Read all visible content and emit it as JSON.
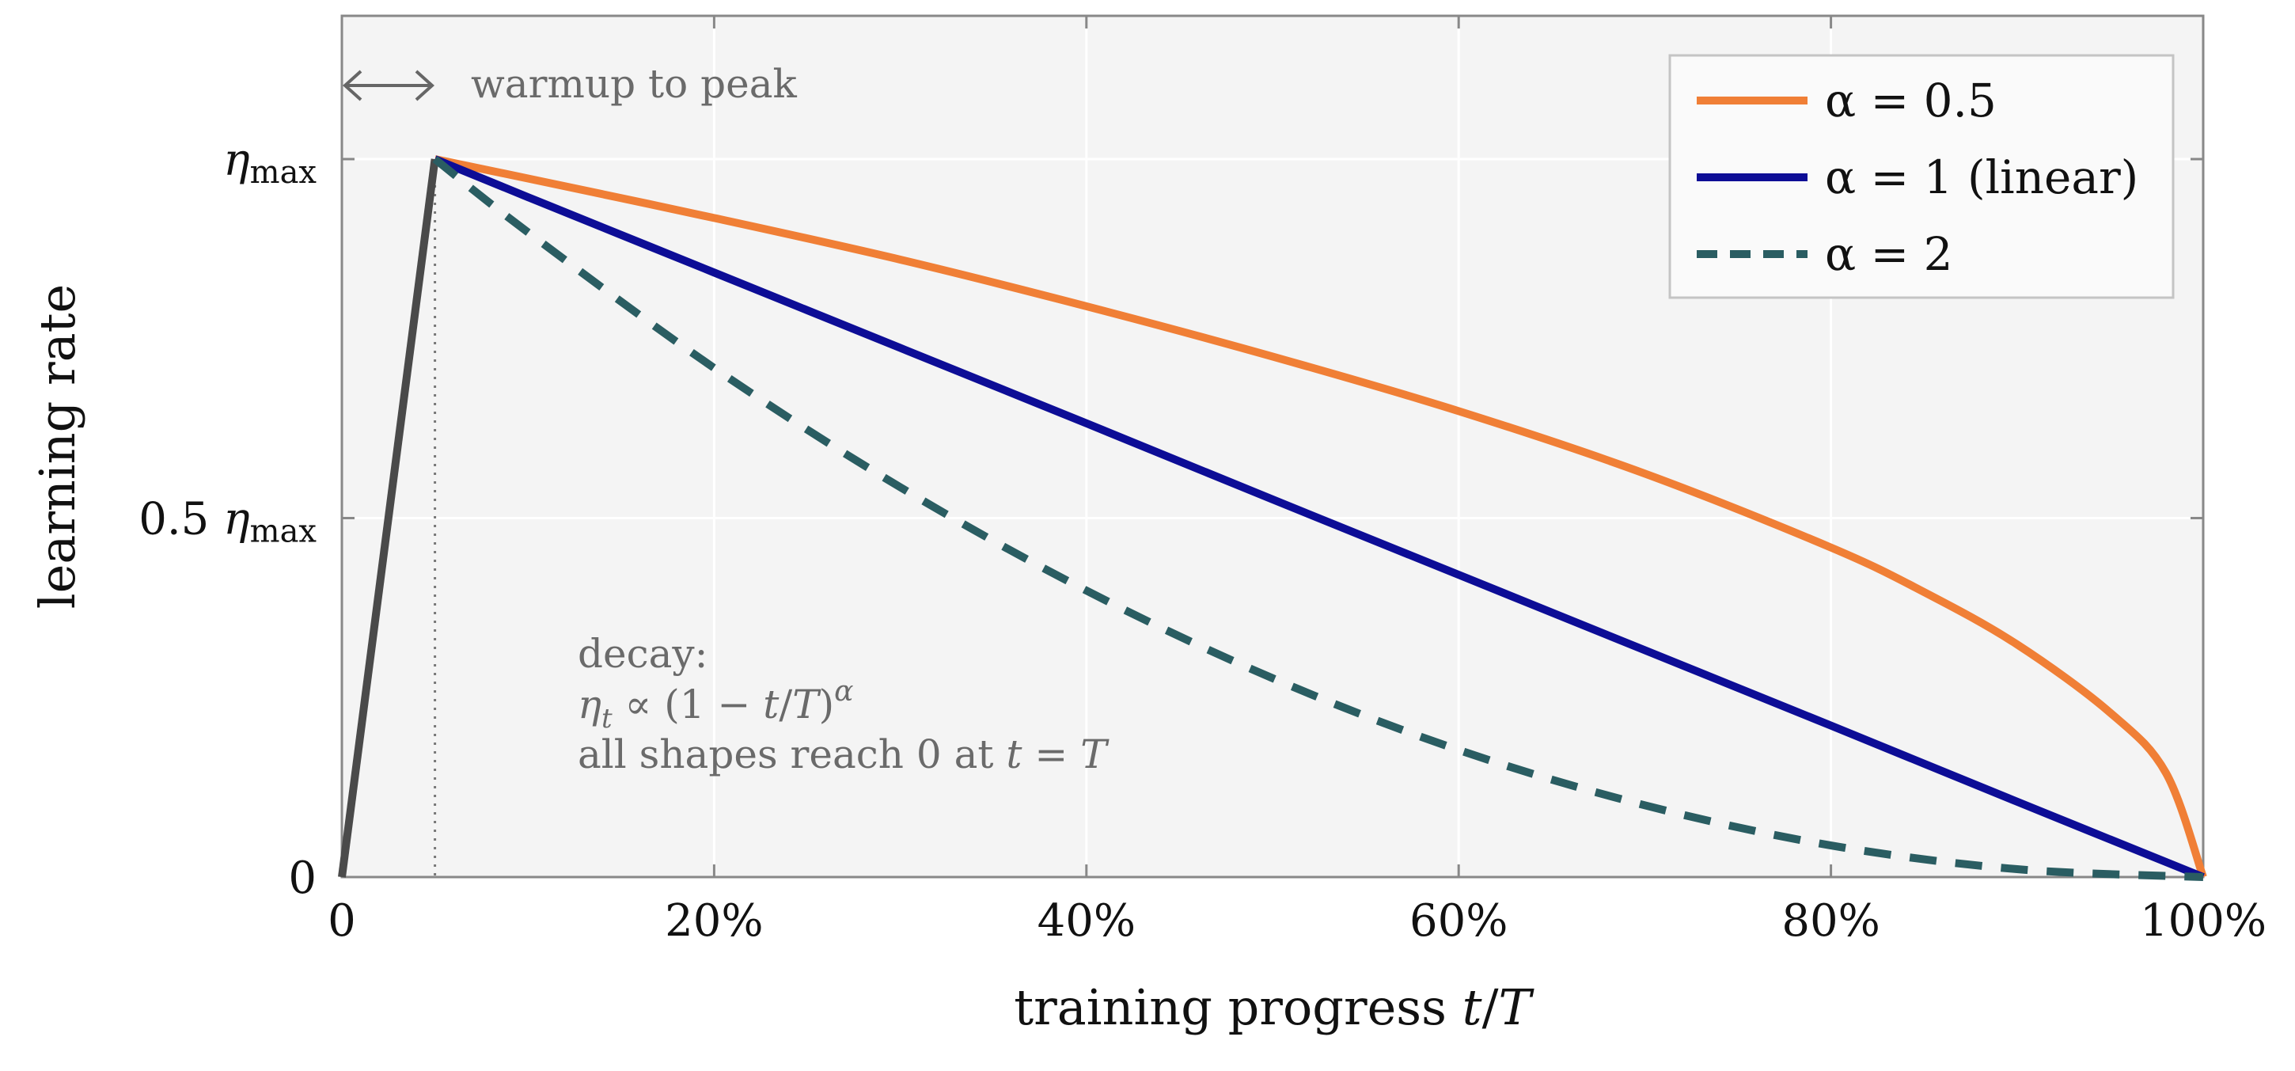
{
  "chart_data": {
    "type": "line",
    "xlabel": "training progress t/T",
    "ylabel": "learning rate",
    "xlim": [
      0,
      1
    ],
    "ylim": [
      0,
      1.2
    ],
    "grid": true,
    "legend_position": "top-right",
    "x_ticks": [
      {
        "value": 0,
        "label": "0"
      },
      {
        "value": 0.2,
        "label": "20%"
      },
      {
        "value": 0.4,
        "label": "40%"
      },
      {
        "value": 0.6,
        "label": "60%"
      },
      {
        "value": 0.8,
        "label": "80%"
      },
      {
        "value": 1.0,
        "label": "100%"
      }
    ],
    "y_ticks": [
      {
        "value": 0,
        "label": "0"
      },
      {
        "value": 0.5,
        "label": "0.5 ηmax"
      },
      {
        "value": 1.0,
        "label": "ηmax"
      }
    ],
    "warmup": {
      "x": [
        0,
        0.05
      ],
      "y": [
        0,
        1.0
      ],
      "color": "#4a4a4a"
    },
    "series": [
      {
        "name": "α = 0.5",
        "color": "#f07f36",
        "dash": "solid",
        "x": [
          0.05,
          0.1,
          0.2,
          0.3,
          0.4,
          0.5,
          0.6,
          0.7,
          0.8,
          0.85,
          0.9,
          0.95,
          0.98,
          1.0
        ],
        "y": [
          1.0,
          0.973,
          0.918,
          0.86,
          0.795,
          0.725,
          0.649,
          0.562,
          0.459,
          0.397,
          0.324,
          0.229,
          0.145,
          0.0
        ]
      },
      {
        "name": "α = 1 (linear)",
        "color": "#0d0d96",
        "dash": "solid",
        "x": [
          0.05,
          0.1,
          0.2,
          0.3,
          0.4,
          0.5,
          0.6,
          0.7,
          0.8,
          0.9,
          1.0
        ],
        "y": [
          1.0,
          0.947,
          0.842,
          0.737,
          0.632,
          0.526,
          0.421,
          0.316,
          0.211,
          0.105,
          0.0
        ]
      },
      {
        "name": "α = 2",
        "color": "#2a5d62",
        "dash": "dashed",
        "x": [
          0.05,
          0.1,
          0.2,
          0.3,
          0.4,
          0.5,
          0.6,
          0.7,
          0.8,
          0.9,
          1.0
        ],
        "y": [
          1.0,
          0.898,
          0.709,
          0.543,
          0.399,
          0.277,
          0.177,
          0.1,
          0.044,
          0.011,
          0.0
        ]
      }
    ],
    "annotations": {
      "warmup": "warmup to peak",
      "decay_title": "decay:",
      "decay_formula": "ηt ∝ (1 − t/T)α",
      "decay_note": "all shapes reach 0 at t = T"
    }
  }
}
